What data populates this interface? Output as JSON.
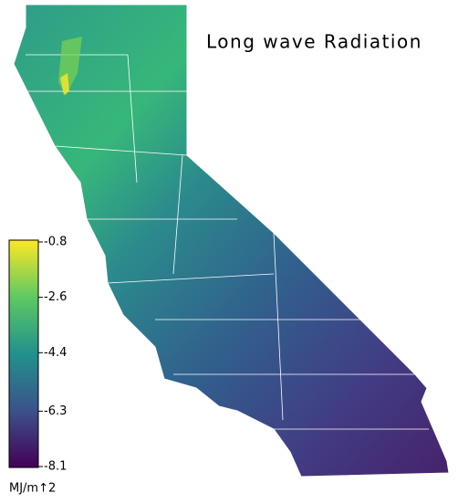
{
  "title": "Long wave Radiation",
  "colorbar": {
    "lim": [
      -8.1,
      -0.8
    ],
    "ticks": [
      -0.8,
      -2.6,
      -4.4,
      -6.3,
      -8.1
    ],
    "label": "MJ/m↑2",
    "colormap": "viridis"
  }
}
